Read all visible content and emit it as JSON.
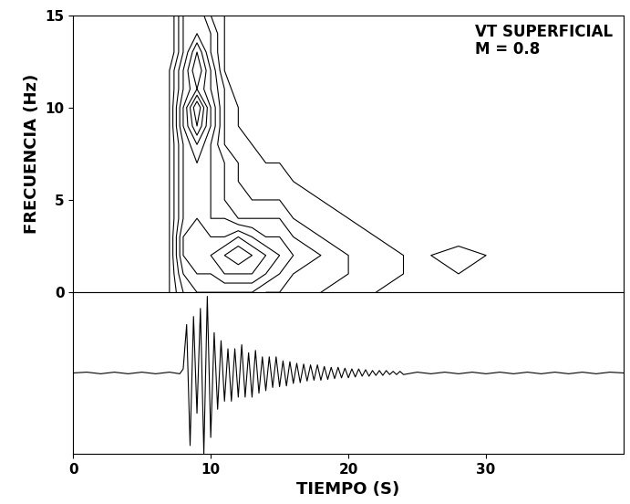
{
  "chart_data": [
    {
      "type": "contour",
      "ylabel": "FRECUENCIA (Hz)",
      "annotations": [
        "VT SUPERFICIAL",
        "M = 0.8"
      ],
      "xlim": [
        0,
        40
      ],
      "ylim": [
        0,
        15
      ],
      "yticks": [
        0,
        5,
        10,
        15
      ],
      "tick_labels": "y",
      "color": "#000000",
      "x": [
        0,
        2,
        4,
        6,
        7,
        8,
        9,
        10,
        11,
        12,
        13,
        14,
        15,
        16,
        18,
        20,
        22,
        24,
        26,
        28,
        30,
        32,
        36,
        40
      ],
      "y": [
        0,
        1,
        2,
        3,
        4,
        5,
        6,
        7,
        8,
        9,
        10,
        11,
        12,
        13,
        14,
        15
      ],
      "levels": [
        1,
        2,
        3,
        4,
        5,
        6,
        7,
        8
      ],
      "z": [
        [
          0,
          0,
          0,
          0,
          1,
          3,
          4,
          4,
          4,
          4,
          4,
          3,
          3,
          3,
          2,
          2,
          1,
          1,
          1,
          1,
          0,
          0,
          0,
          0
        ],
        [
          0,
          1,
          0,
          0,
          1,
          4,
          5,
          5,
          6,
          6,
          6,
          5,
          4,
          3,
          3,
          2,
          2,
          1,
          1,
          1,
          1,
          0,
          0,
          0
        ],
        [
          0,
          1,
          0,
          0,
          1,
          5,
          6,
          6,
          7,
          8,
          7,
          6,
          5,
          4,
          3,
          2,
          2,
          1,
          1,
          2,
          1,
          0,
          0,
          0
        ],
        [
          0,
          0,
          0,
          0,
          1,
          5,
          6,
          5,
          5,
          6,
          5,
          4,
          4,
          3,
          2,
          2,
          1,
          1,
          1,
          0,
          0,
          0,
          0,
          0
        ],
        [
          0,
          0,
          0,
          0,
          1,
          4,
          5,
          4,
          4,
          3,
          3,
          3,
          3,
          2,
          2,
          1,
          1,
          0,
          0,
          0,
          0,
          0,
          0,
          0
        ],
        [
          0,
          0,
          0,
          0,
          1,
          4,
          5,
          4,
          3,
          3,
          2,
          2,
          2,
          2,
          1,
          1,
          0,
          0,
          0,
          0,
          0,
          0,
          0,
          0
        ],
        [
          0,
          0,
          0,
          0,
          1,
          4,
          5,
          4,
          3,
          2,
          2,
          2,
          2,
          1,
          1,
          0,
          0,
          0,
          0,
          0,
          0,
          0,
          0,
          0
        ],
        [
          0,
          0,
          0,
          0,
          1,
          4,
          5,
          4,
          3,
          2,
          2,
          1,
          1,
          1,
          0,
          0,
          0,
          0,
          0,
          0,
          0,
          0,
          0,
          0
        ],
        [
          0,
          0,
          0,
          0,
          1,
          4,
          6,
          4,
          2,
          2,
          1,
          1,
          0,
          0,
          0,
          0,
          0,
          0,
          0,
          0,
          0,
          0,
          0,
          0
        ],
        [
          0,
          0,
          0,
          0,
          1,
          5,
          8,
          5,
          2,
          1,
          1,
          0,
          0,
          0,
          0,
          0,
          0,
          0,
          0,
          0,
          0,
          0,
          0,
          0
        ],
        [
          0,
          0,
          0,
          0,
          1,
          5,
          9,
          5,
          2,
          1,
          0,
          0,
          0,
          0,
          0,
          0,
          0,
          0,
          0,
          0,
          0,
          0,
          0,
          0
        ],
        [
          0,
          0,
          0,
          0,
          1,
          4,
          6,
          4,
          2,
          0,
          0,
          0,
          0,
          0,
          0,
          0,
          0,
          0,
          0,
          0,
          0,
          0,
          0,
          0
        ],
        [
          0,
          0,
          0,
          0,
          1,
          4,
          7,
          4,
          1,
          0,
          0,
          0,
          0,
          0,
          0,
          0,
          0,
          0,
          0,
          0,
          0,
          0,
          0,
          0
        ],
        [
          0,
          0,
          0,
          0,
          0,
          3,
          6,
          3,
          1,
          0,
          0,
          0,
          0,
          0,
          0,
          0,
          0,
          0,
          0,
          0,
          0,
          0,
          0,
          0
        ],
        [
          0,
          0,
          0,
          0,
          0,
          3,
          4,
          3,
          1,
          0,
          0,
          0,
          0,
          0,
          0,
          0,
          0,
          0,
          0,
          0,
          0,
          0,
          0,
          0
        ],
        [
          0,
          0,
          0,
          0,
          0,
          3,
          4,
          2,
          1,
          0,
          0,
          0,
          0,
          0,
          0,
          0,
          0,
          0,
          0,
          0,
          0,
          0,
          0,
          0
        ]
      ]
    },
    {
      "type": "line",
      "xlabel": "TIEMPO (S)",
      "xlim": [
        0,
        40
      ],
      "xticks": [
        0,
        10,
        20,
        30
      ],
      "ylim": [
        -1,
        1
      ],
      "tick_labels": "x",
      "color": "#000000",
      "x": [
        0,
        1,
        2,
        3,
        4,
        5,
        6,
        7,
        7.75,
        8,
        8.25,
        8.5,
        8.75,
        9,
        9.25,
        9.5,
        9.75,
        10,
        10.25,
        10.5,
        10.75,
        11,
        11.25,
        11.5,
        11.75,
        12,
        12.25,
        12.5,
        12.75,
        13,
        13.25,
        13.5,
        13.75,
        14,
        14.25,
        14.5,
        14.75,
        15,
        15.25,
        15.5,
        15.75,
        16,
        16.25,
        16.5,
        16.75,
        17,
        17.25,
        17.5,
        17.75,
        18,
        18.25,
        18.5,
        18.75,
        19,
        19.25,
        19.5,
        19.75,
        20,
        20.25,
        20.5,
        20.75,
        21,
        21.25,
        21.5,
        21.75,
        22,
        22.25,
        22.5,
        22.75,
        23,
        23.25,
        23.5,
        23.75,
        24,
        25,
        26,
        27,
        28,
        29,
        30,
        31,
        32,
        33,
        34,
        35,
        36,
        37,
        38,
        39,
        40
      ],
      "values": [
        0,
        0.01,
        -0.01,
        0.01,
        -0.01,
        0.01,
        -0.01,
        0.01,
        -0.01,
        0.05,
        0.6,
        -0.9,
        0.7,
        -0.5,
        0.8,
        -1.0,
        0.95,
        -0.8,
        0.5,
        -0.45,
        0.4,
        -0.35,
        0.3,
        -0.35,
        0.3,
        -0.3,
        0.35,
        -0.3,
        0.25,
        -0.3,
        0.28,
        -0.25,
        0.2,
        -0.22,
        0.2,
        -0.18,
        0.2,
        -0.17,
        0.15,
        -0.16,
        0.14,
        -0.13,
        0.12,
        -0.12,
        0.11,
        -0.1,
        0.1,
        -0.09,
        0.1,
        -0.09,
        0.08,
        -0.08,
        0.07,
        -0.07,
        0.07,
        -0.06,
        0.06,
        -0.06,
        0.05,
        -0.05,
        0.05,
        -0.04,
        0.04,
        -0.04,
        0.03,
        -0.03,
        0.03,
        -0.03,
        0.03,
        -0.02,
        0.02,
        -0.02,
        0.02,
        -0.02,
        0.01,
        -0.01,
        0.01,
        -0.01,
        0.01,
        -0.01,
        0.01,
        -0.01,
        0.01,
        -0.01,
        0.01,
        -0.01,
        0.01,
        -0.01,
        0.01,
        0
      ]
    }
  ]
}
